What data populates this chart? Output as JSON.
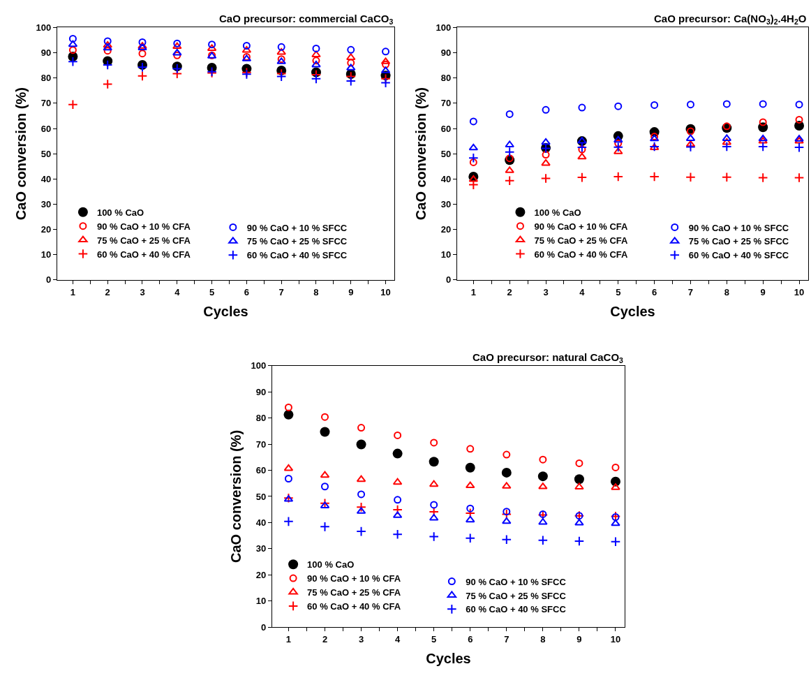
{
  "chart_data": [
    {
      "type": "scatter",
      "title": "CaO precursor: commercial CaCO$_{3}$",
      "xlabel": "Cycles",
      "ylabel": "CaO conversion (%)",
      "x": [
        1,
        2,
        3,
        4,
        5,
        6,
        7,
        8,
        9,
        10
      ],
      "xlim": [
        0.55,
        10.25
      ],
      "xticks": [
        1,
        {
          "value": 1.5,
          "label": null
        },
        2,
        {
          "value": 2.5,
          "label": null
        },
        3,
        {
          "value": 3.5,
          "label": null
        },
        4,
        {
          "value": 4.5,
          "label": null
        },
        5,
        {
          "value": 5.5,
          "label": null
        },
        6,
        {
          "value": 6.5,
          "label": null
        },
        7,
        {
          "value": 7.5,
          "label": null
        },
        8,
        {
          "value": 8.5,
          "label": null
        },
        9,
        {
          "value": 9.5,
          "label": null
        },
        10
      ],
      "ylim": [
        0,
        100
      ],
      "yticks": [
        0,
        10,
        20,
        30,
        40,
        50,
        60,
        70,
        80,
        90,
        100
      ],
      "legend": "bottom left",
      "series": [
        {
          "name": "100 % CaO",
          "color": "#000000",
          "marker": "circle",
          "values": [
            88.5,
            86.7,
            85.2,
            84.6,
            84.1,
            83.7,
            83.0,
            82.3,
            81.6,
            81.0
          ]
        },
        {
          "name": "90 % CaO + 10 % CFA",
          "color": "#ff0000",
          "marker": "circle",
          "values": [
            91.1,
            90.8,
            89.7,
            89.0,
            89.0,
            88.4,
            87.5,
            86.9,
            86.0,
            85.4
          ]
        },
        {
          "name": "75 % CaO + 25 % CFA",
          "color": "#ff0000",
          "marker": "triangle",
          "values": [
            null,
            93.0,
            92.6,
            92.5,
            91.7,
            91.0,
            90.2,
            89.2,
            88.1,
            86.5
          ]
        },
        {
          "name": "60 % CaO + 40 % CFA",
          "color": "#ff0000",
          "marker": "cross",
          "values": [
            69.5,
            77.6,
            80.8,
            81.7,
            82.0,
            82.2,
            81.7,
            81.3,
            80.6,
            79.7
          ]
        },
        {
          "name": "90 % CaO + 10 % SFCC",
          "color": "#0000ff",
          "marker": "circle",
          "values": [
            95.6,
            94.6,
            94.2,
            93.7,
            93.3,
            92.8,
            92.3,
            91.7,
            91.2,
            90.5
          ]
        },
        {
          "name": "75 % CaO + 25 % SFCC",
          "color": "#0000ff",
          "marker": "triangle",
          "values": [
            93.3,
            91.9,
            92.0,
            89.9,
            88.7,
            87.6,
            86.5,
            85.2,
            84.0,
            82.9
          ]
        },
        {
          "name": "60 % CaO + 40 % SFCC",
          "color": "#0000ff",
          "marker": "cross",
          "values": [
            86.5,
            85.2,
            84.3,
            83.7,
            82.5,
            81.5,
            80.6,
            79.7,
            78.8,
            78.1
          ]
        }
      ]
    },
    {
      "type": "scatter",
      "title": "CaO precursor: Ca(NO$_{3}$)$_{2}$.4H$_{2}$O",
      "xlabel": "Cycles",
      "ylabel": "CaO conversion (%)",
      "x": [
        1,
        2,
        3,
        4,
        5,
        6,
        7,
        8,
        9,
        10
      ],
      "xlim": [
        0.55,
        10.25
      ],
      "xticks": [
        1,
        {
          "value": 1.5,
          "label": null
        },
        2,
        {
          "value": 2.5,
          "label": null
        },
        3,
        {
          "value": 3.5,
          "label": null
        },
        4,
        {
          "value": 4.5,
          "label": null
        },
        5,
        {
          "value": 5.5,
          "label": null
        },
        6,
        {
          "value": 6.5,
          "label": null
        },
        7,
        {
          "value": 7.5,
          "label": null
        },
        8,
        {
          "value": 8.5,
          "label": null
        },
        9,
        {
          "value": 9.5,
          "label": null
        },
        10
      ],
      "ylim": [
        0,
        100
      ],
      "yticks": [
        0,
        10,
        20,
        30,
        40,
        50,
        60,
        70,
        80,
        90,
        100
      ],
      "legend": "bottom right",
      "series": [
        {
          "name": "100 % CaO",
          "color": "#000000",
          "marker": "circle",
          "values": [
            40.9,
            47.5,
            52.3,
            55.0,
            57.0,
            58.6,
            59.8,
            60.2,
            60.5,
            61.1
          ]
        },
        {
          "name": "90 % CaO + 10 % CFA",
          "color": "#ff0000",
          "marker": "circle",
          "values": [
            46.6,
            48.2,
            49.6,
            51.7,
            54.1,
            56.8,
            58.9,
            60.9,
            62.5,
            63.5
          ]
        },
        {
          "name": "75 % CaO + 25 % CFA",
          "color": "#ff0000",
          "marker": "triangle",
          "values": [
            39.8,
            43.3,
            46.2,
            48.7,
            50.8,
            52.4,
            53.7,
            54.5,
            55.0,
            55.0
          ]
        },
        {
          "name": "60 % CaO + 40 % CFA",
          "color": "#ff0000",
          "marker": "cross",
          "values": [
            37.7,
            39.3,
            40.2,
            40.6,
            40.9,
            40.9,
            40.7,
            40.7,
            40.5,
            40.5
          ]
        },
        {
          "name": "90 % CaO + 10 % SFCC",
          "color": "#0000ff",
          "marker": "circle",
          "values": [
            62.8,
            65.7,
            67.4,
            68.3,
            68.8,
            69.3,
            69.5,
            69.7,
            69.7,
            69.5
          ]
        },
        {
          "name": "75 % CaO + 25 % SFCC",
          "color": "#0000ff",
          "marker": "triangle",
          "values": [
            52.3,
            53.5,
            54.5,
            55.0,
            55.4,
            55.9,
            56.0,
            56.0,
            55.9,
            55.8
          ]
        },
        {
          "name": "60 % CaO + 40 % SFCC",
          "color": "#0000ff",
          "marker": "cross",
          "values": [
            48.3,
            50.7,
            52.1,
            52.5,
            52.6,
            52.8,
            52.7,
            52.8,
            52.8,
            52.5
          ]
        }
      ]
    },
    {
      "type": "scatter",
      "title": "CaO precursor: natural CaCO$_{3}$",
      "xlabel": "Cycles",
      "ylabel": "CaO conversion (%)",
      "x": [
        1,
        2,
        3,
        4,
        5,
        6,
        7,
        8,
        9,
        10
      ],
      "xlim": [
        0.55,
        10.25
      ],
      "xticks": [
        1,
        {
          "value": 1.5,
          "label": null
        },
        2,
        {
          "value": 2.5,
          "label": null
        },
        3,
        {
          "value": 3.5,
          "label": null
        },
        4,
        {
          "value": 4.5,
          "label": null
        },
        5,
        {
          "value": 5.5,
          "label": null
        },
        6,
        {
          "value": 6.5,
          "label": null
        },
        7,
        {
          "value": 7.5,
          "label": null
        },
        8,
        {
          "value": 8.5,
          "label": null
        },
        9,
        {
          "value": 9.5,
          "label": null
        },
        10
      ],
      "ylim": [
        0,
        100
      ],
      "yticks": [
        0,
        10,
        20,
        30,
        40,
        50,
        60,
        70,
        80,
        90,
        100
      ],
      "legend": "bottom left",
      "series": [
        {
          "name": "100 % CaO",
          "color": "#000000",
          "marker": "circle",
          "values": [
            81.3,
            74.7,
            69.9,
            66.4,
            63.3,
            61.0,
            59.1,
            57.7,
            56.6,
            55.7
          ]
        },
        {
          "name": "90 % CaO + 10 % CFA",
          "color": "#ff0000",
          "marker": "circle",
          "values": [
            84.1,
            80.4,
            76.3,
            73.4,
            70.6,
            68.2,
            66.0,
            64.1,
            62.7,
            61.1
          ]
        },
        {
          "name": "75 % CaO + 25 % CFA",
          "color": "#ff0000",
          "marker": "triangle",
          "values": [
            60.7,
            58.1,
            56.5,
            55.4,
            54.6,
            54.1,
            53.9,
            53.7,
            53.6,
            53.4
          ]
        },
        {
          "name": "60 % CaO + 40 % CFA",
          "color": "#ff0000",
          "marker": "cross",
          "values": [
            49.4,
            47.4,
            45.9,
            44.9,
            44.1,
            43.6,
            43.2,
            42.9,
            42.6,
            42.4
          ]
        },
        {
          "name": "90 % CaO + 10 % SFCC",
          "color": "#0000ff",
          "marker": "circle",
          "values": [
            56.8,
            53.8,
            50.8,
            48.7,
            46.8,
            45.4,
            44.2,
            43.2,
            42.6,
            42.1
          ]
        },
        {
          "name": "75 % CaO + 25 % SFCC",
          "color": "#0000ff",
          "marker": "triangle",
          "values": [
            48.9,
            46.4,
            44.3,
            42.7,
            41.7,
            41.0,
            40.4,
            40.1,
            39.8,
            39.6
          ]
        },
        {
          "name": "60 % CaO + 40 % SFCC",
          "color": "#0000ff",
          "marker": "cross",
          "values": [
            40.4,
            38.4,
            36.6,
            35.5,
            34.6,
            34.0,
            33.5,
            33.2,
            32.9,
            32.7
          ]
        }
      ]
    }
  ]
}
